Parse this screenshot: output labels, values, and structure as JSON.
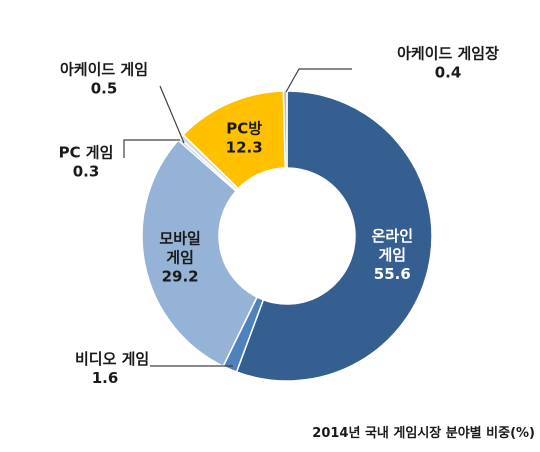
{
  "chart_data": {
    "type": "pie",
    "variant": "donut",
    "start": "12 o'clock, clockwise",
    "slices": [
      {
        "name": "온라인 게임",
        "value": 55.6,
        "color": "#365f91",
        "label_lines": [
          "온라인",
          "게임",
          "55.6"
        ],
        "label_style": "light"
      },
      {
        "name": "비디오 게임",
        "value": 1.6,
        "color": "#4f81bd",
        "label_lines": [
          "비디오 게임",
          "1.6"
        ],
        "label_style": "dark"
      },
      {
        "name": "모바일 게임",
        "value": 29.2,
        "color": "#95b3d7",
        "label_lines": [
          "모바일",
          "게임",
          "29.2"
        ],
        "label_style": "dark"
      },
      {
        "name": "PC 게임",
        "value": 0.3,
        "color": "#b8cce4",
        "label_lines": [
          "PC 게임",
          "0.3"
        ],
        "label_style": "dark"
      },
      {
        "name": "아케이드 게임",
        "value": 0.5,
        "color": "#d9d9d9",
        "label_lines": [
          "아케이드 게임",
          "0.5"
        ],
        "label_style": "dark"
      },
      {
        "name": "PC방",
        "value": 12.3,
        "color": "#ffc000",
        "label_lines": [
          "PC방",
          "12.3"
        ],
        "label_style": "dark"
      },
      {
        "name": "아케이드 게임장",
        "value": 0.4,
        "color": "#bfbfbf",
        "label_lines": [
          "아케이드 게임장",
          "0.4"
        ],
        "label_style": "dark"
      }
    ],
    "caption": "2014년 국내 게임시장 분야별 비중(%)",
    "slice_border_color": "#ffffff"
  }
}
